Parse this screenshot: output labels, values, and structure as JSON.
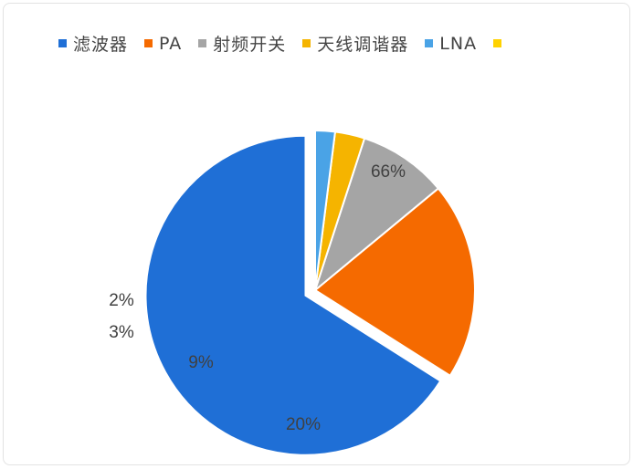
{
  "chart_data": {
    "type": "pie",
    "legend_position": "top",
    "categories": [
      "滤波器",
      "PA",
      "射频开关",
      "天线调谐器",
      "LNA",
      ""
    ],
    "values": [
      66,
      20,
      9,
      3,
      2,
      0
    ],
    "labels": [
      "66%",
      "20%",
      "9%",
      "3%",
      "2%",
      ""
    ],
    "colors": [
      "#1f6fd6",
      "#f56a00",
      "#a5a5a5",
      "#f5b400",
      "#4aa3e6",
      "#ffd200"
    ],
    "exploded_slice": "滤波器"
  }
}
